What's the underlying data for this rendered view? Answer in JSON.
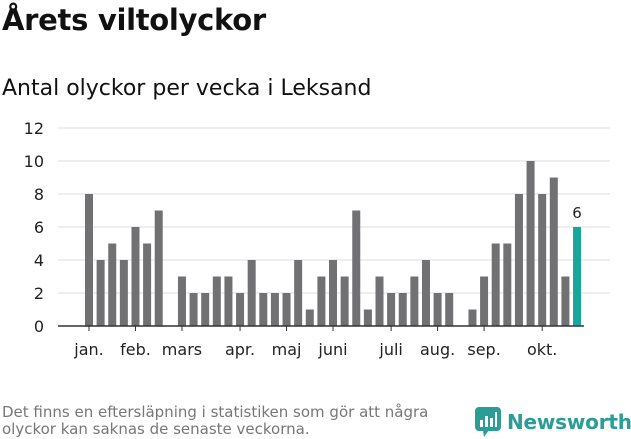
{
  "title": "Årets viltolyckor",
  "subtitle": "Antal olyckor per vecka i Leksand",
  "footnote": "Det finns en eftersläpning i statistiken som gör att några olyckor kan saknas de senaste veckorna.",
  "brand": {
    "name": "Newsworthy",
    "icon": "newsworthy-logo-icon"
  },
  "colors": {
    "bar": "#717073",
    "highlight": "#18a69b",
    "grid": "#dddddd",
    "axis": "#333333"
  },
  "chart_data": {
    "type": "bar",
    "title": "Antal olyckor per vecka i Leksand",
    "xlabel": "",
    "ylabel": "",
    "ylim": [
      0,
      12
    ],
    "yticks": [
      0,
      2,
      4,
      6,
      8,
      10,
      12
    ],
    "grid": true,
    "weeks": [
      1,
      2,
      3,
      4,
      5,
      6,
      7,
      8,
      9,
      10,
      11,
      12,
      13,
      14,
      15,
      16,
      17,
      18,
      19,
      20,
      21,
      22,
      23,
      24,
      25,
      26,
      27,
      28,
      29,
      30,
      31,
      32,
      33,
      34,
      35,
      36,
      37,
      38,
      39,
      40,
      41,
      42,
      43
    ],
    "values": [
      8,
      4,
      5,
      4,
      6,
      5,
      7,
      0,
      3,
      2,
      2,
      3,
      3,
      2,
      4,
      2,
      2,
      2,
      4,
      1,
      3,
      4,
      3,
      7,
      1,
      3,
      2,
      2,
      3,
      4,
      2,
      2,
      0,
      1,
      3,
      5,
      5,
      8,
      10,
      8,
      9,
      3,
      6
    ],
    "highlight_index": 42,
    "highlight_label": "6",
    "month_ticks": [
      {
        "label": "jan.",
        "week": 1
      },
      {
        "label": "feb.",
        "week": 5
      },
      {
        "label": "mars",
        "week": 9
      },
      {
        "label": "apr.",
        "week": 14
      },
      {
        "label": "maj",
        "week": 18
      },
      {
        "label": "juni",
        "week": 22
      },
      {
        "label": "juli",
        "week": 27
      },
      {
        "label": "aug.",
        "week": 31
      },
      {
        "label": "sep.",
        "week": 35
      },
      {
        "label": "okt.",
        "week": 40
      }
    ]
  }
}
